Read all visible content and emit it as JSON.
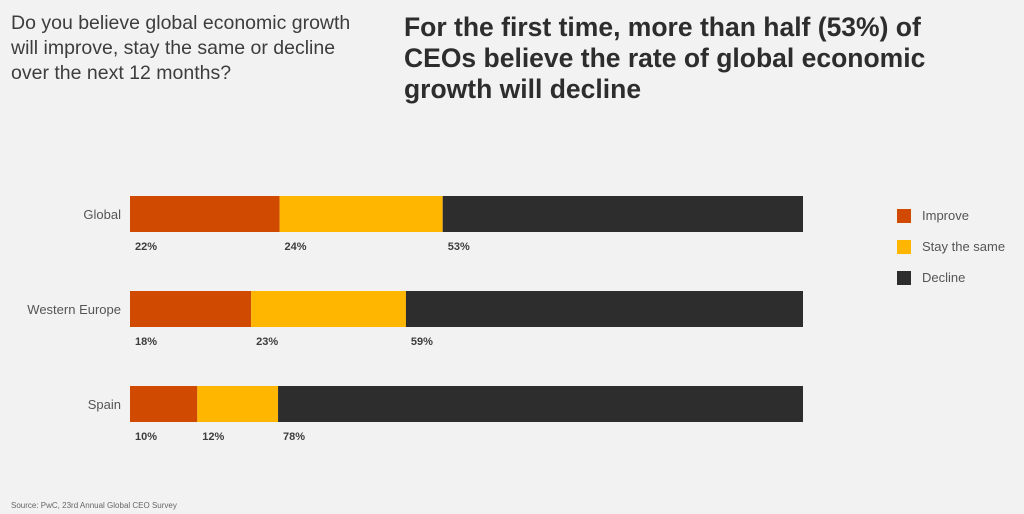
{
  "question": "Do you believe global economic growth will improve, stay the same or decline over the next 12 months?",
  "headline": "For the first time, more than half (53%) of CEOs believe the rate of global economic growth will decline",
  "source": "Source: PwC, 23rd Annual Global CEO Survey",
  "chart_data": {
    "type": "bar",
    "orientation": "horizontal",
    "stacked": true,
    "title": "For the first time, more than half (53%) of CEOs believe the rate of global economic growth will decline",
    "xlabel": "",
    "ylabel": "",
    "unit": "%",
    "grid": false,
    "legend_position": "right",
    "categories": [
      "Global",
      "Western Europe",
      "Spain"
    ],
    "series": [
      {
        "name": "Improve",
        "color": "#d04a02",
        "values": [
          22,
          18,
          10
        ],
        "labels": [
          "22%",
          "18%",
          "10%"
        ]
      },
      {
        "name": "Stay the same",
        "color": "#ffb600",
        "values": [
          24,
          23,
          12
        ],
        "labels": [
          "24%",
          "23%",
          "12%"
        ]
      },
      {
        "name": "Decline",
        "color": "#2d2d2d",
        "values": [
          53,
          59,
          78
        ],
        "labels": [
          "53%",
          "59%",
          "78%"
        ]
      }
    ]
  }
}
